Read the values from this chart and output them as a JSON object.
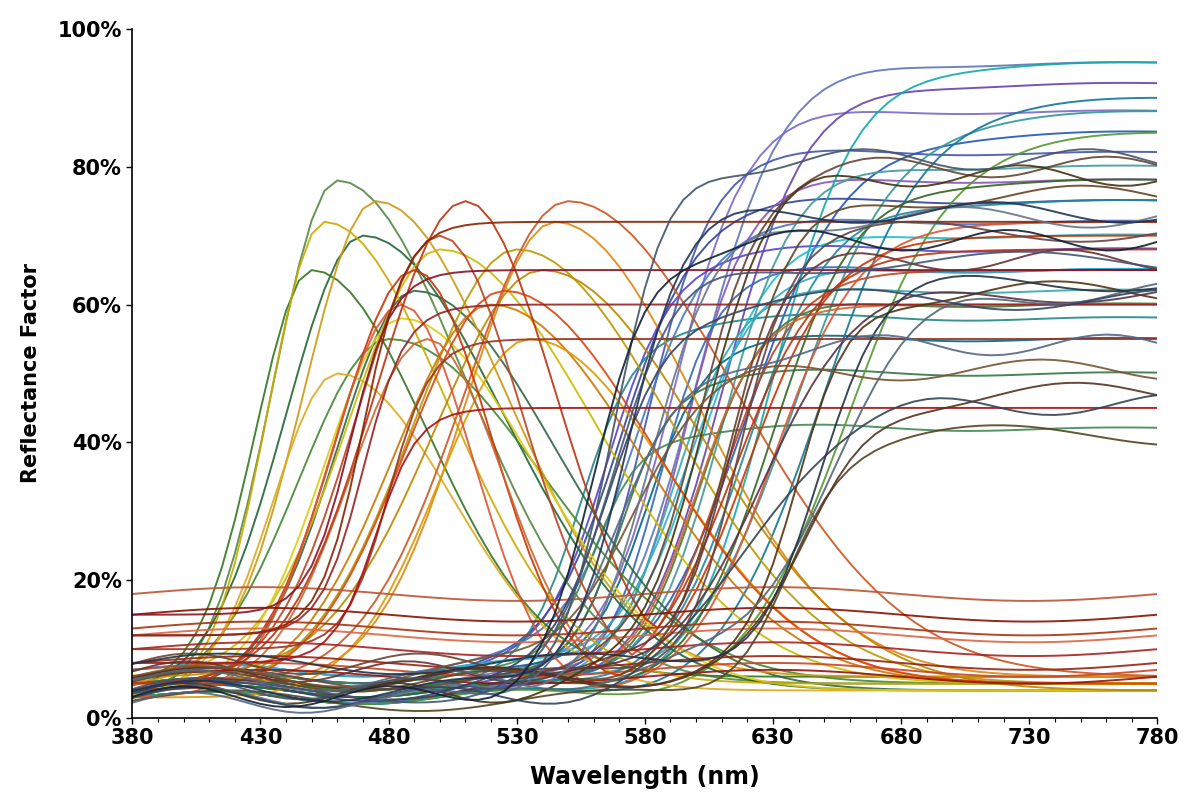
{
  "xlabel": "Wavelength (nm)",
  "ylabel": "Reflectance Factor",
  "xlim": [
    380,
    780
  ],
  "ylim": [
    0,
    1.0
  ],
  "xticks": [
    380,
    430,
    480,
    530,
    580,
    630,
    680,
    730,
    780
  ],
  "yticks": [
    0,
    0.2,
    0.4,
    0.6,
    0.8,
    1.0
  ],
  "ytick_labels": [
    "0%",
    "20%",
    "40%",
    "60%",
    "80%",
    "100%"
  ],
  "xlabel_fontsize": 17,
  "ylabel_fontsize": 15,
  "tick_fontsize": 15,
  "line_width": 1.4
}
